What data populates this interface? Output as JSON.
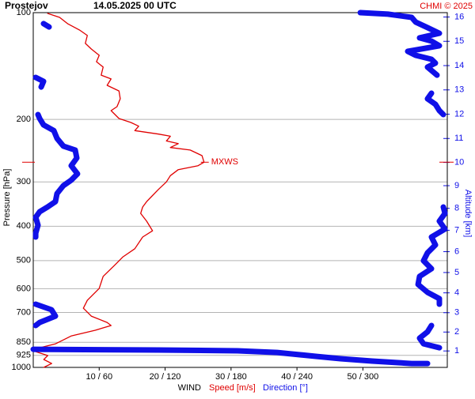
{
  "chart_data": {
    "type": "profile",
    "station": "Prostejov",
    "title": "14.05.2025 00 UTC",
    "credit": "CHMI © 2025",
    "ylabel": "Pressure [hPa]",
    "y2label": "Altitude [km]",
    "xlabel": "WIND",
    "ylim": [
      1000,
      100
    ],
    "ylog": true,
    "yticks": [
      100,
      200,
      300,
      400,
      500,
      600,
      700,
      850,
      925,
      1000
    ],
    "grid": true,
    "xlim": [
      0,
      62.8
    ],
    "x2lim": [
      0,
      376.8
    ],
    "xticks": [
      {
        "value": 10,
        "label": "10 / 60"
      },
      {
        "value": 20,
        "label": "20 / 120"
      },
      {
        "value": 30,
        "label": "30 / 180"
      },
      {
        "value": 40,
        "label": "40 / 240"
      },
      {
        "value": 50,
        "label": "50 / 300"
      }
    ],
    "y2ticks": [
      1,
      2,
      3,
      4,
      5,
      6,
      7,
      8,
      9,
      10,
      11,
      12,
      13,
      14,
      15,
      16
    ],
    "max_wind": {
      "label": "MXWS",
      "pressure": 264,
      "value": 25.9
    },
    "series": [
      {
        "name": "Speed [m/s]",
        "color": "#e00000",
        "axis": "x",
        "pressure": [
          100.5,
          103.1,
          107.4,
          111.9,
          116.0,
          122.1,
          126.6,
          131.9,
          137.5,
          142.4,
          150.0,
          153.8,
          160.3,
          166.2,
          174.9,
          184.1,
          188.9,
          198.8,
          204,
          209,
          215,
          220,
          223,
          230,
          234,
          240,
          244,
          253,
          264,
          270,
          277,
          288,
          300,
          315,
          332,
          341,
          353,
          368,
          387,
          412,
          429,
          463,
          488,
          514,
          554,
          599,
          647,
          681,
          717,
          747,
          762,
          786,
          815,
          858,
          880,
          903,
          926,
          950,
          975,
          1000
        ],
        "values": [
          2.2,
          4.0,
          5.2,
          7.0,
          8.2,
          7.9,
          8.8,
          10.0,
          9.6,
          10.6,
          10.3,
          11.8,
          11.2,
          13.0,
          13.2,
          12.7,
          11.8,
          13.0,
          14.8,
          16.0,
          15.4,
          19.0,
          20.8,
          20.2,
          22.0,
          20.8,
          23.8,
          25.6,
          25.9,
          25.0,
          22.0,
          20.8,
          20.2,
          19.0,
          17.8,
          17.2,
          16.6,
          16.3,
          17.2,
          18.1,
          16.6,
          15.4,
          13.6,
          12.4,
          10.6,
          10.0,
          8.2,
          7.6,
          8.8,
          11.2,
          11.8,
          9.4,
          5.8,
          3.4,
          1.0,
          0.4,
          2.2,
          1.6,
          2.8,
          1.6
        ]
      },
      {
        "name": "Direction [°]",
        "color": "#1010e8",
        "axis": "x2",
        "pressure": [
          100,
          101.0,
          103.1,
          106.3,
          110.2,
          114.3,
          117.8,
          120.3,
          124.0,
          128.6,
          131.9,
          135.3,
          138.8,
          142.4,
          150.0,
          null,
          168.7,
          174.9,
          181.3,
          188.9,
          193.8,
          null,
          107.4,
          109.7,
          null,
          152.3,
          156.2,
          162.0,
          null,
          193.8,
          198.8,
          207.2,
          215,
          226.1,
          237.8,
          244,
          256.9,
          270,
          284.7,
          296.6,
          307.4,
          323.6,
          341,
          353,
          364.1,
          377.4,
          397.3,
          418.2,
          429,
          null,
          353,
          368,
          387,
          407.5,
          429,
          451.7,
          475.5,
          500.4,
          527,
          554,
          583.5,
          614.5,
          640.1,
          663.5,
          null,
          663.5,
          687.8,
          717,
          747,
          762,
          null,
          762,
          794,
          827,
          858,
          880,
          null,
          889,
          893.2,
          897.9,
          907.5,
          916.8,
          931,
          945.2,
          960,
          975,
          975
        ],
        "values": [
          297.6,
          322.8,
          344.4,
          348,
          358.8,
          369.6,
          351.6,
          362.4,
          369.6,
          340.8,
          348,
          362.4,
          366,
          358.8,
          367.4,
          null,
          362.4,
          358.8,
          366,
          369.6,
          373.2,
          null,
          9.4,
          14.4,
          null,
          2.2,
          9.4,
          7.2,
          null,
          4.3,
          5.8,
          9.4,
          18.7,
          21.6,
          27.4,
          38.2,
          39.6,
          34.6,
          40.3,
          34.6,
          27.4,
          21.6,
          20.2,
          13,
          5.8,
          2.2,
          4.3,
          2.2,
          2.2,
          null,
          373.2,
          374.7,
          369.6,
          374.7,
          362.4,
          366,
          358.8,
          355.2,
          362.4,
          351.6,
          350.2,
          358.8,
          369.6,
          369.6,
          null,
          2.2,
          16.6,
          20.2,
          5.8,
          2.2,
          null,
          362.4,
          358.8,
          351.6,
          355.2,
          369.6,
          null,
          0,
          113.8,
          185.9,
          221.9,
          236.3,
          258,
          279.6,
          308.4,
          344.4,
          358.8
        ]
      }
    ]
  }
}
